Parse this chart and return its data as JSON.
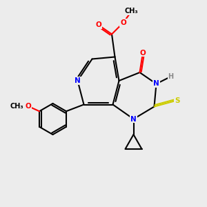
{
  "bg": "#ececec",
  "bond_color": "#000000",
  "lw": 1.5,
  "atom_colors": {
    "N": "#0000ff",
    "O": "#ff0000",
    "S": "#cccc00",
    "H": "#888888",
    "C": "#000000"
  },
  "fs": 7.5
}
